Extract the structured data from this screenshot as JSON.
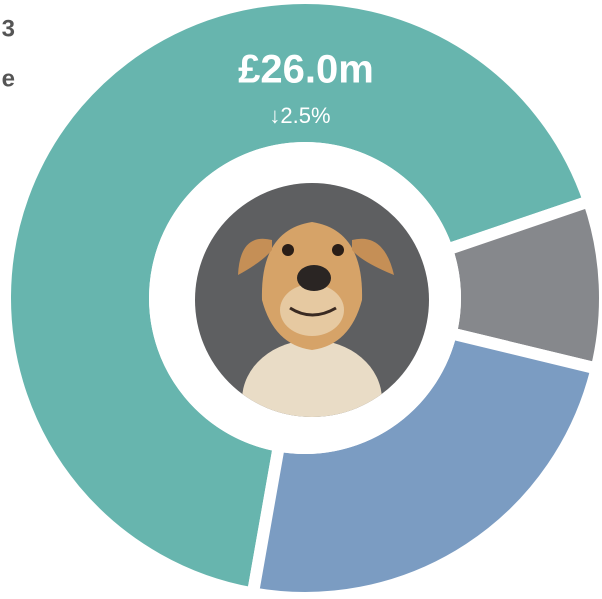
{
  "chart_data": {
    "type": "donut",
    "title_fragments": [
      "3",
      "e"
    ],
    "categories": [
      null,
      null,
      null
    ],
    "values": [
      67,
      9,
      24
    ],
    "colors": [
      "#67b5ae",
      "#86888c",
      "#7b9cc2"
    ],
    "annotation": "£26.0m",
    "change": "↓2.5%"
  }
}
